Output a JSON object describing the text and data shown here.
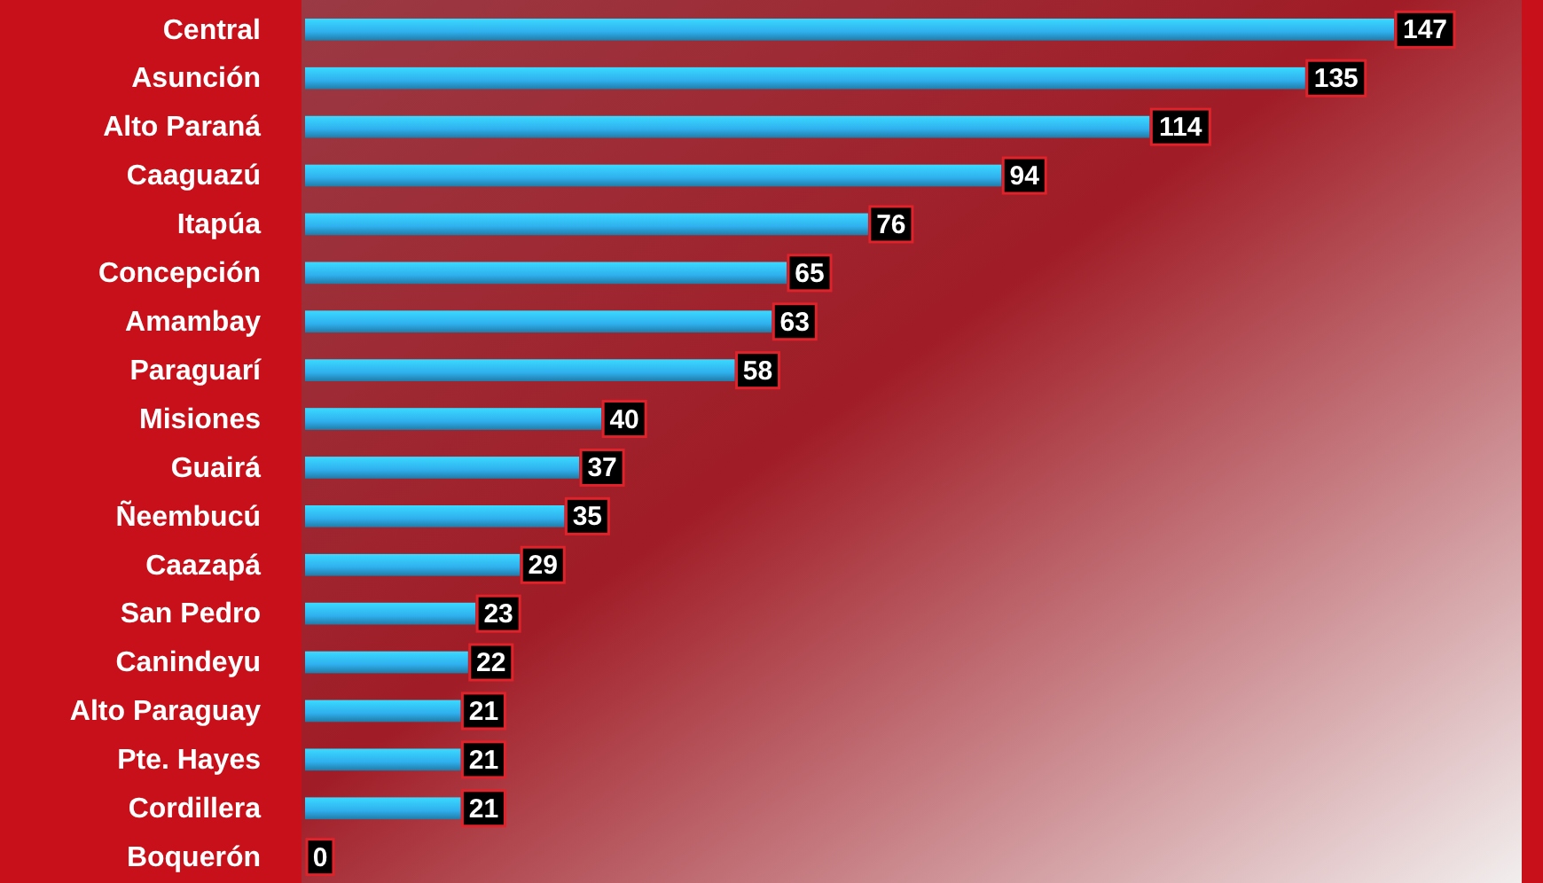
{
  "chart_data": {
    "type": "bar",
    "orientation": "horizontal",
    "categories": [
      "Central",
      "Asunción",
      "Alto Paraná",
      "Caaguazú",
      "Itapúa",
      "Concepción",
      "Amambay",
      "Paraguarí",
      "Misiones",
      "Guairá",
      "Ñeembucú",
      "Caazapá",
      "San Pedro",
      "Canindeyu",
      "Alto Paraguay",
      "Pte. Hayes",
      "Cordillera",
      "Boquerón"
    ],
    "values": [
      147,
      135,
      114,
      94,
      76,
      65,
      63,
      58,
      40,
      37,
      35,
      29,
      23,
      22,
      21,
      21,
      21,
      0
    ],
    "color": "#2fb0ee",
    "data_labels": true,
    "tick_labels": "y"
  }
}
